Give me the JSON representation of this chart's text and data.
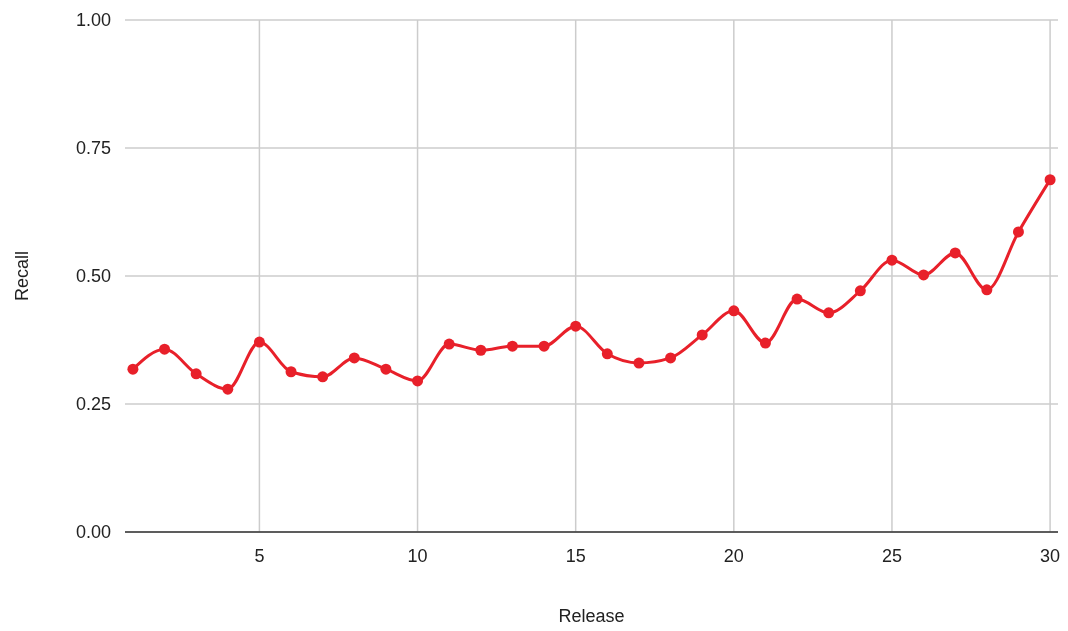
{
  "chart_data": {
    "type": "line",
    "xlabel": "Release",
    "ylabel": "Recall",
    "x": [
      1,
      2,
      3,
      4,
      5,
      6,
      7,
      8,
      9,
      10,
      11,
      12,
      13,
      14,
      15,
      16,
      17,
      18,
      19,
      20,
      21,
      22,
      23,
      24,
      25,
      26,
      27,
      28,
      29,
      30
    ],
    "series": [
      {
        "color": "#e8202a",
        "values": [
          0.318,
          0.357,
          0.309,
          0.279,
          0.371,
          0.313,
          0.303,
          0.34,
          0.318,
          0.295,
          0.367,
          0.355,
          0.363,
          0.363,
          0.402,
          0.348,
          0.33,
          0.34,
          0.385,
          0.432,
          0.369,
          0.455,
          0.428,
          0.471,
          0.531,
          0.502,
          0.545,
          0.473,
          0.586,
          0.688
        ]
      }
    ],
    "xlim": [
      0.75,
      30.25
    ],
    "xticks": [
      5,
      10,
      15,
      20,
      25,
      30
    ],
    "ylim": [
      0,
      1
    ],
    "yticks": [
      {
        "value": 0,
        "label": "0.00"
      },
      {
        "value": 0.25,
        "label": "0.25"
      },
      {
        "value": 0.5,
        "label": "0.50"
      },
      {
        "value": 0.75,
        "label": "0.75"
      },
      {
        "value": 1,
        "label": "1.00"
      }
    ],
    "grid": true,
    "marker": "circle",
    "line_style": "solid"
  }
}
